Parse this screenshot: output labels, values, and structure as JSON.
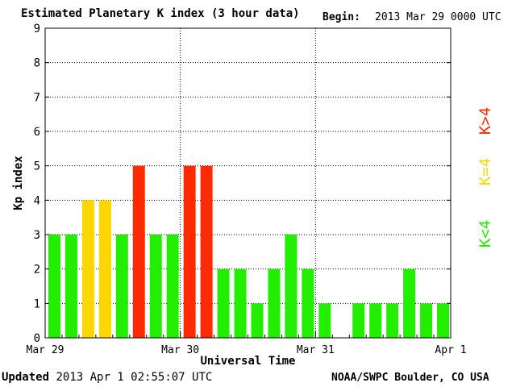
{
  "header": {
    "title": "Estimated Planetary K index (3 hour data)",
    "begin_label": "Begin:",
    "begin_value": "2013 Mar 29 0000 UTC"
  },
  "footer": {
    "updated_label": "Updated",
    "updated_value": "2013 Apr  1 02:55:07 UTC",
    "credit": "NOAA/SWPC Boulder, CO USA"
  },
  "colors": {
    "low": "#22ee00",
    "mid": "#ffd700",
    "high": "#ff2a00"
  },
  "legend": [
    {
      "label": "K>4",
      "color": "#ff2a00"
    },
    {
      "label": "K=4",
      "color": "#ffd700"
    },
    {
      "label": "K<4",
      "color": "#22ee00"
    }
  ],
  "chart_data": {
    "type": "bar",
    "title": "Estimated Planetary K index (3 hour data)",
    "xlabel": "Universal Time",
    "ylabel": "Kp index",
    "ylim": [
      0,
      9
    ],
    "yticks": [
      "0",
      "1",
      "2",
      "3",
      "4",
      "5",
      "6",
      "7",
      "8",
      "9"
    ],
    "xticks": [
      "Mar 29",
      "Mar 30",
      "Mar 31",
      "Apr 1"
    ],
    "grid": true,
    "legend_position": "right",
    "slots_per_day": 8,
    "values": [
      3,
      3,
      4,
      4,
      3,
      5,
      3,
      3,
      5,
      5,
      2,
      2,
      1,
      2,
      3,
      2,
      1,
      null,
      1,
      1,
      1,
      2,
      1,
      1
    ]
  }
}
